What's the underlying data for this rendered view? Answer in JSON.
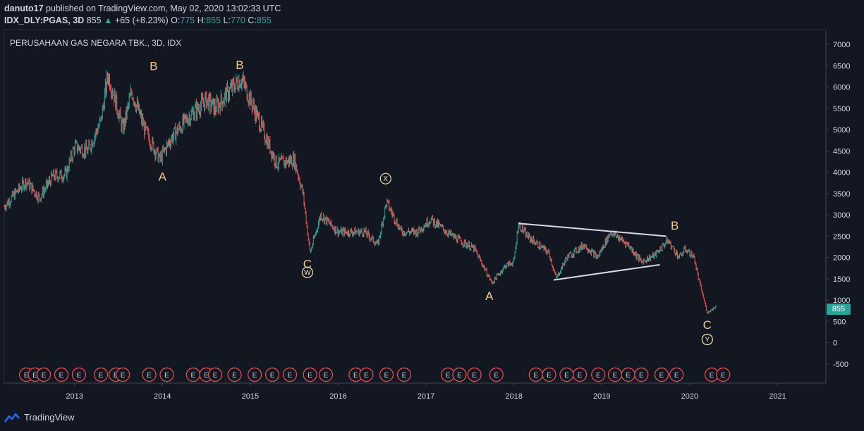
{
  "header": {
    "author": "danuto17",
    "published_text": "published on TradingView.com, May 02, 2020 13:02:33 UTC",
    "symbol": "IDX_DLY:PGAS, 3D",
    "last": "855",
    "change": "+65 (+8.23%)",
    "o_label": "O:",
    "o": "775",
    "h_label": "H:",
    "h": "855",
    "l_label": "L:",
    "l": "770",
    "c_label": "C:",
    "c": "855"
  },
  "chart_title": "PERUSAHAAN GAS NEGARA TBK., 3D, IDX",
  "price_tag": "855",
  "footer": {
    "brand": "TradingView"
  },
  "colors": {
    "background": "#131722",
    "up": "#26a69a",
    "down": "#ef5350",
    "label": "#f5c884",
    "earnings": "#ef5350"
  },
  "chart_data": {
    "type": "candlestick",
    "title": "PERUSAHAAN GAS NEGARA TBK., 3D, IDX",
    "y_ticks": [
      7000,
      6500,
      6000,
      5500,
      5000,
      4500,
      4000,
      3500,
      3000,
      2500,
      2000,
      1500,
      1000,
      500,
      0,
      -500
    ],
    "x_ticks": [
      "2013",
      "2014",
      "2015",
      "2016",
      "2017",
      "2018",
      "2019",
      "2020",
      "2021"
    ],
    "ylim": [
      -950,
      7350
    ],
    "xlim": [
      2012.2,
      2021.55
    ],
    "price_path": [
      [
        2012.2,
        3200
      ],
      [
        2012.45,
        3800
      ],
      [
        2012.6,
        3400
      ],
      [
        2012.75,
        3900
      ],
      [
        2012.9,
        3950
      ],
      [
        2013.0,
        4600
      ],
      [
        2013.15,
        4500
      ],
      [
        2013.3,
        5200
      ],
      [
        2013.38,
        6300
      ],
      [
        2013.45,
        5800
      ],
      [
        2013.55,
        5000
      ],
      [
        2013.65,
        5900
      ],
      [
        2013.8,
        5000
      ],
      [
        2013.97,
        4300
      ],
      [
        2014.1,
        4800
      ],
      [
        2014.3,
        5300
      ],
      [
        2014.5,
        5700
      ],
      [
        2014.6,
        5500
      ],
      [
        2014.8,
        6000
      ],
      [
        2014.9,
        6200
      ],
      [
        2015.0,
        5700
      ],
      [
        2015.1,
        5200
      ],
      [
        2015.3,
        4200
      ],
      [
        2015.5,
        4300
      ],
      [
        2015.6,
        3500
      ],
      [
        2015.68,
        2100
      ],
      [
        2015.8,
        3000
      ],
      [
        2016.0,
        2600
      ],
      [
        2016.3,
        2600
      ],
      [
        2016.45,
        2300
      ],
      [
        2016.55,
        3300
      ],
      [
        2016.72,
        2600
      ],
      [
        2016.9,
        2600
      ],
      [
        2017.05,
        2900
      ],
      [
        2017.3,
        2500
      ],
      [
        2017.55,
        2200
      ],
      [
        2017.75,
        1400
      ],
      [
        2017.9,
        1800
      ],
      [
        2018.0,
        1900
      ],
      [
        2018.05,
        2800
      ],
      [
        2018.15,
        2500
      ],
      [
        2018.4,
        2100
      ],
      [
        2018.48,
        1500
      ],
      [
        2018.6,
        2000
      ],
      [
        2018.8,
        2300
      ],
      [
        2018.95,
        2000
      ],
      [
        2019.1,
        2600
      ],
      [
        2019.3,
        2300
      ],
      [
        2019.45,
        1900
      ],
      [
        2019.6,
        2050
      ],
      [
        2019.75,
        2400
      ],
      [
        2019.88,
        2000
      ],
      [
        2019.95,
        2200
      ],
      [
        2020.05,
        2000
      ],
      [
        2020.1,
        1500
      ],
      [
        2020.2,
        700
      ],
      [
        2020.3,
        855
      ]
    ],
    "annotations": [
      {
        "text": "A",
        "x": 2014.0,
        "y": 3900
      },
      {
        "text": "B",
        "x": 2013.9,
        "y": 6500
      },
      {
        "text": "B",
        "x": 2014.88,
        "y": 6520
      },
      {
        "text": "C",
        "x": 2015.65,
        "y": 1850
      },
      {
        "text": "W",
        "x": 2015.65,
        "y": 1650,
        "circled": true
      },
      {
        "text": "X",
        "x": 2016.54,
        "y": 3850,
        "circled": true
      },
      {
        "text": "A",
        "x": 2017.72,
        "y": 1100
      },
      {
        "text": "B",
        "x": 2019.83,
        "y": 2750
      },
      {
        "text": "C",
        "x": 2020.2,
        "y": 420
      },
      {
        "text": "Y",
        "x": 2020.2,
        "y": 75,
        "circled": true
      }
    ],
    "trendlines": [
      {
        "from": [
          2018.05,
          2800
        ],
        "to": [
          2019.73,
          2500
        ]
      },
      {
        "from": [
          2018.45,
          1470
        ],
        "to": [
          2019.66,
          1830
        ]
      }
    ],
    "earnings_markers": [
      2012.45,
      2012.55,
      2012.65,
      2012.85,
      2013.05,
      2013.3,
      2013.47,
      2013.55,
      2013.85,
      2014.05,
      2014.35,
      2014.5,
      2014.6,
      2014.82,
      2015.05,
      2015.25,
      2015.45,
      2015.68,
      2015.86,
      2016.2,
      2016.32,
      2016.55,
      2016.75,
      2017.25,
      2017.38,
      2017.55,
      2017.8,
      2018.25,
      2018.4,
      2018.6,
      2018.75,
      2018.96,
      2019.15,
      2019.3,
      2019.45,
      2019.68,
      2019.85,
      2020.25,
      2020.38
    ],
    "earnings_label": "E"
  }
}
